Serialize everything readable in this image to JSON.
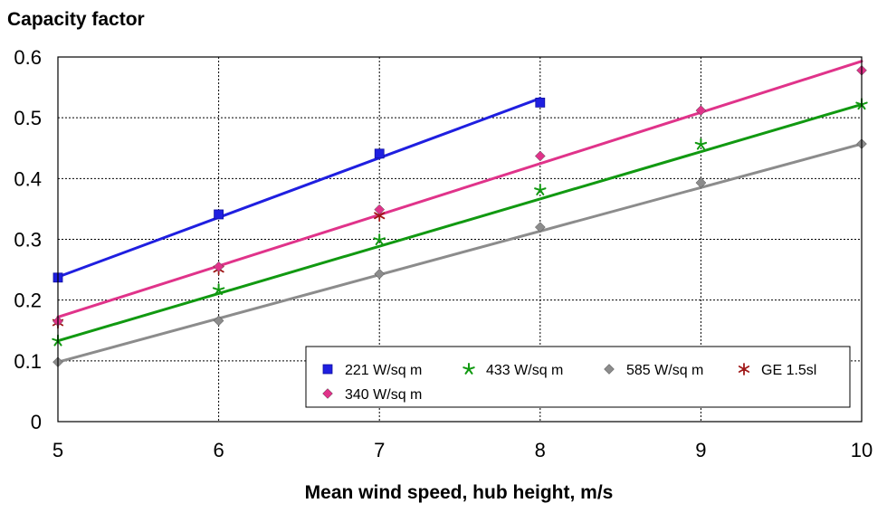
{
  "chart_data": {
    "type": "scatter",
    "title": "Capacity factor",
    "xlabel": "Mean wind speed, hub height, m/s",
    "ylabel": "",
    "xlim": [
      5,
      10
    ],
    "ylim": [
      0,
      0.6
    ],
    "xticks": [
      "5",
      "6",
      "7",
      "8",
      "9",
      "10"
    ],
    "yticks": [
      "0",
      "0.1",
      "0.2",
      "0.3",
      "0.4",
      "0.5",
      "0.6"
    ],
    "grid": true,
    "legend_position": "bottom-right",
    "series": [
      {
        "name": "221 W/sq m",
        "color": "#1f1fe0",
        "marker": "square",
        "points": [
          [
            5,
            0.237
          ],
          [
            6,
            0.341
          ],
          [
            7,
            0.441
          ],
          [
            8,
            0.525
          ]
        ],
        "trendline": [
          [
            5,
            0.238
          ],
          [
            8,
            0.532
          ]
        ]
      },
      {
        "name": "433 W/sq m",
        "color": "#119911",
        "marker": "star",
        "points": [
          [
            5,
            0.133
          ],
          [
            6,
            0.217
          ],
          [
            7,
            0.299
          ],
          [
            8,
            0.381
          ],
          [
            9,
            0.456
          ],
          [
            10,
            0.522
          ]
        ],
        "trendline": [
          [
            5,
            0.133
          ],
          [
            10,
            0.522
          ]
        ]
      },
      {
        "name": "585 W/sq m",
        "color": "#8c8c8c",
        "marker": "diamond",
        "points": [
          [
            5,
            0.098
          ],
          [
            6,
            0.166
          ],
          [
            7,
            0.243
          ],
          [
            8,
            0.32
          ],
          [
            9,
            0.393
          ],
          [
            10,
            0.457
          ]
        ],
        "trendline": [
          [
            5,
            0.098
          ],
          [
            10,
            0.457
          ]
        ]
      },
      {
        "name": "GE 1.5sl",
        "color": "#a01818",
        "marker": "star6",
        "points": [
          [
            5,
            0.163
          ],
          [
            6,
            0.251
          ],
          [
            7,
            0.339
          ]
        ],
        "trendline": []
      },
      {
        "name": "340 W/sq m",
        "color": "#e0338a",
        "marker": "diamond",
        "points": [
          [
            5,
            0.165
          ],
          [
            6,
            0.255
          ],
          [
            7,
            0.349
          ],
          [
            8,
            0.437
          ],
          [
            9,
            0.512
          ],
          [
            10,
            0.578
          ]
        ],
        "trendline": [
          [
            5,
            0.172
          ],
          [
            10,
            0.593
          ]
        ]
      }
    ]
  }
}
